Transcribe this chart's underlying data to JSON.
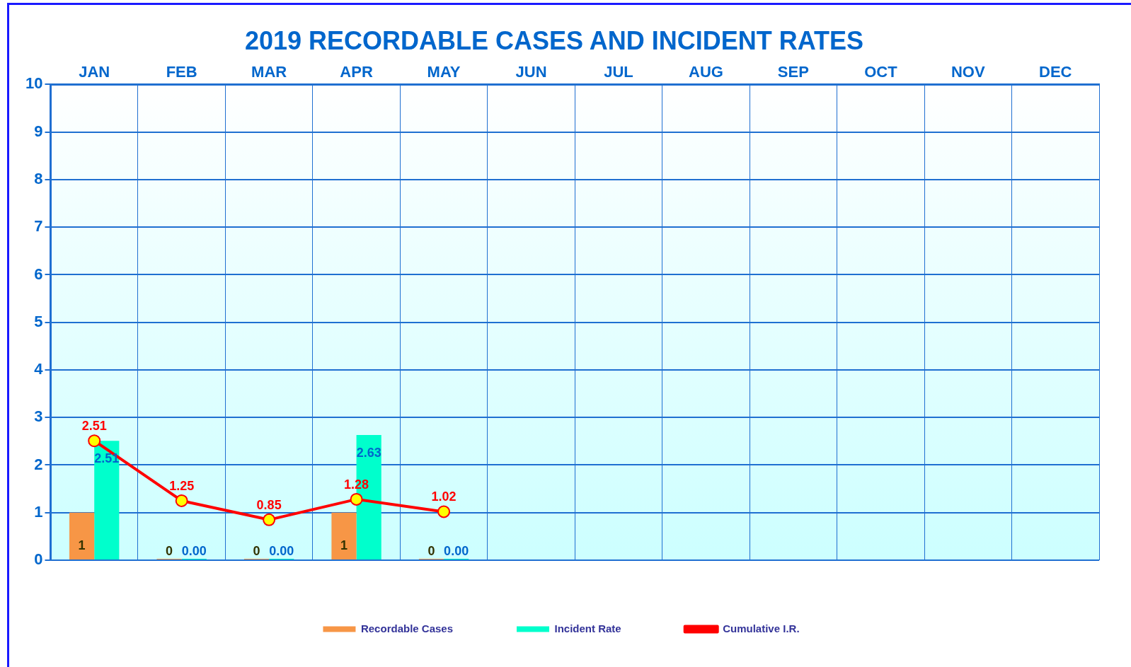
{
  "chart_data": {
    "type": "bar",
    "title": "2019 RECORDABLE CASES AND INCIDENT RATES",
    "categories": [
      "JAN",
      "FEB",
      "MAR",
      "APR",
      "MAY",
      "JUN",
      "JUL",
      "AUG",
      "SEP",
      "OCT",
      "NOV",
      "DEC"
    ],
    "series": [
      {
        "name": "Recordable Cases",
        "color": "#f79646",
        "values": [
          1,
          0,
          0,
          1,
          0,
          null,
          null,
          null,
          null,
          null,
          null,
          null
        ],
        "value_labels": [
          "1",
          "0",
          "0",
          "1",
          "0",
          null,
          null,
          null,
          null,
          null,
          null,
          null
        ]
      },
      {
        "name": "Incident Rate",
        "color": "#00ffcc",
        "values": [
          2.51,
          0,
          0,
          2.63,
          0,
          null,
          null,
          null,
          null,
          null,
          null,
          null
        ],
        "value_labels": [
          "2.51",
          "0.00",
          "0.00",
          "2.63",
          "0.00",
          null,
          null,
          null,
          null,
          null,
          null,
          null
        ]
      },
      {
        "name": "Cumulative I.R.",
        "type": "line",
        "color": "#ff0000",
        "marker": "circle",
        "values": [
          2.51,
          1.25,
          0.85,
          1.28,
          1.02,
          null,
          null,
          null,
          null,
          null,
          null,
          null
        ],
        "value_labels": [
          "2.51",
          "1.25",
          "0.85",
          "1.28",
          "1.02",
          null,
          null,
          null,
          null,
          null,
          null,
          null
        ]
      }
    ],
    "ylim": [
      0,
      10
    ],
    "yticks": [
      0,
      1,
      2,
      3,
      4,
      5,
      6,
      7,
      8,
      9,
      10
    ],
    "grid": true,
    "legend": "bottom"
  }
}
